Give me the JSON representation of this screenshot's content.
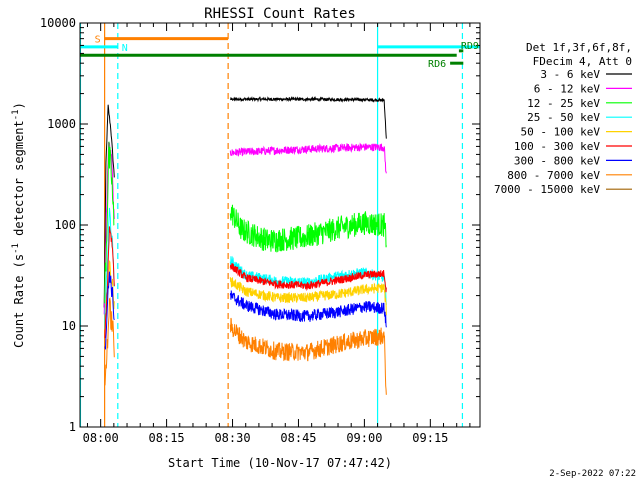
{
  "chart_data": {
    "type": "line",
    "title": "RHESSI Count Rates",
    "xlabel": "Start Time (10-Nov-17 07:47:42)",
    "ylabel_main": "Count Rate (s",
    "ylabel_sup": "-1",
    "ylabel_tail": " detector segment",
    "ylabel_sup2": "-1",
    "ylabel_close": ")",
    "timestamp": "2-Sep-2022 07:22",
    "log_scale_y": true,
    "xlim_minutes": [
      -4.7,
      86.3
    ],
    "ylim": [
      1,
      10000
    ],
    "x_ticks": [
      {
        "label": "08:00",
        "minute": 0
      },
      {
        "label": "08:15",
        "minute": 15
      },
      {
        "label": "08:30",
        "minute": 30
      },
      {
        "label": "08:45",
        "minute": 45
      },
      {
        "label": "09:00",
        "minute": 60
      },
      {
        "label": "09:15",
        "minute": 75
      }
    ],
    "y_ticks": [
      {
        "label": "1",
        "value": 1
      },
      {
        "label": "10",
        "value": 10
      },
      {
        "label": "100",
        "value": 100
      },
      {
        "label": "1000",
        "value": 1000
      },
      {
        "label": "10000",
        "value": 10000
      }
    ],
    "legend_header": [
      "Det 1f,3f,6f,8f,",
      "FDecim 4, Att 0"
    ],
    "legend_placement": "right",
    "series": [
      {
        "name": "3 - 6 keV",
        "color": "#000000",
        "seg1": [
          [
            0.8,
            15
          ],
          [
            1.2,
            400
          ],
          [
            1.7,
            1500
          ],
          [
            2.3,
            900
          ],
          [
            3.1,
            300
          ]
        ],
        "seg2": [
          [
            29.5,
            1760
          ],
          [
            45,
            1760
          ],
          [
            60,
            1740
          ],
          [
            64.5,
            1720
          ],
          [
            65.0,
            700
          ]
        ],
        "noise": 0.015
      },
      {
        "name": "6 - 12 keV",
        "color": "#ff00ff",
        "seg1": [
          [
            0.8,
            12
          ],
          [
            1.3,
            120
          ],
          [
            1.8,
            650
          ],
          [
            2.5,
            450
          ],
          [
            3.1,
            100
          ]
        ],
        "seg2": [
          [
            29.5,
            520
          ],
          [
            45,
            560
          ],
          [
            60,
            590
          ],
          [
            64.5,
            590
          ],
          [
            65.0,
            300
          ]
        ],
        "noise": 0.04
      },
      {
        "name": "12 - 25 keV",
        "color": "#00ff00",
        "seg1": [
          [
            0.9,
            20
          ],
          [
            1.4,
            90
          ],
          [
            1.8,
            500
          ],
          [
            2.5,
            300
          ],
          [
            3.1,
            80
          ]
        ],
        "seg2": [
          [
            29.5,
            140
          ],
          [
            32,
            90
          ],
          [
            38,
            70
          ],
          [
            46,
            75
          ],
          [
            55,
            95
          ],
          [
            60,
            105
          ],
          [
            64.5,
            100
          ],
          [
            65.0,
            70
          ]
        ],
        "noise": 0.12
      },
      {
        "name": "25 - 50 keV",
        "color": "#00ffff",
        "seg1": [
          [
            0.9,
            10
          ],
          [
            1.5,
            40
          ],
          [
            2.0,
            140
          ],
          [
            2.6,
            70
          ],
          [
            3.1,
            25
          ]
        ],
        "seg2": [
          [
            29.5,
            45
          ],
          [
            33,
            32
          ],
          [
            40,
            28
          ],
          [
            47,
            27
          ],
          [
            55,
            32
          ],
          [
            60,
            34
          ],
          [
            64.5,
            30
          ],
          [
            65.0,
            18
          ]
        ],
        "noise": 0.05
      },
      {
        "name": "50 - 100 keV",
        "color": "#ffd200",
        "seg1": [
          [
            1.0,
            10
          ],
          [
            1.5,
            20
          ],
          [
            2.0,
            40
          ],
          [
            2.7,
            25
          ],
          [
            3.1,
            15
          ]
        ],
        "seg2": [
          [
            29.5,
            28
          ],
          [
            33,
            22
          ],
          [
            40,
            19
          ],
          [
            47,
            19
          ],
          [
            55,
            21
          ],
          [
            60,
            23
          ],
          [
            64.5,
            24
          ],
          [
            65.0,
            14
          ]
        ],
        "noise": 0.05
      },
      {
        "name": "100 - 300 keV",
        "color": "#ff0000",
        "seg1": [
          [
            1.0,
            8
          ],
          [
            1.6,
            30
          ],
          [
            2.0,
            100
          ],
          [
            2.7,
            60
          ],
          [
            3.1,
            25
          ]
        ],
        "seg2": [
          [
            29.5,
            40
          ],
          [
            33,
            30
          ],
          [
            40,
            26
          ],
          [
            47,
            25
          ],
          [
            55,
            29
          ],
          [
            60,
            32
          ],
          [
            64.5,
            33
          ],
          [
            65.0,
            22
          ]
        ],
        "noise": 0.04
      },
      {
        "name": "300 - 800 keV",
        "color": "#0000ff",
        "seg1": [
          [
            1.0,
            6
          ],
          [
            1.6,
            18
          ],
          [
            2.0,
            35
          ],
          [
            2.7,
            20
          ],
          [
            3.1,
            12
          ]
        ],
        "seg2": [
          [
            29.5,
            20
          ],
          [
            33,
            16
          ],
          [
            40,
            13
          ],
          [
            47,
            12.5
          ],
          [
            55,
            14
          ],
          [
            60,
            15.5
          ],
          [
            64.5,
            15
          ],
          [
            65.0,
            10
          ]
        ],
        "noise": 0.06
      },
      {
        "name": "800 - 7000 keV",
        "color": "#ff8000",
        "seg1": [
          [
            1.0,
            2.5
          ],
          [
            1.6,
            8
          ],
          [
            2.0,
            15
          ],
          [
            2.7,
            10
          ],
          [
            3.1,
            6
          ]
        ],
        "seg2": [
          [
            29.5,
            10
          ],
          [
            33,
            7
          ],
          [
            40,
            5.6
          ],
          [
            47,
            5.5
          ],
          [
            55,
            6.8
          ],
          [
            60,
            7.5
          ],
          [
            64.5,
            8
          ],
          [
            65.0,
            2
          ]
        ],
        "noise": 0.09
      },
      {
        "name": "7000 - 15000 keV",
        "color": "#a06000"
      }
    ],
    "flags": [
      {
        "label": "S",
        "color": "#ff8000",
        "x_start": 0.9,
        "x_end": 29.0,
        "level": 7000,
        "label_side": "left"
      },
      {
        "label": "N",
        "color": "#00ffff",
        "x_start": -4.7,
        "x_end": 3.9,
        "level": 5800,
        "label_side": "right"
      },
      {
        "label": "N",
        "color": "#00ffff",
        "x_start": 63.0,
        "x_end": 86.3,
        "level": 5800,
        "label_side": "none"
      },
      {
        "label": "",
        "color": "#008000",
        "x_start": -4.7,
        "x_end": 81.0,
        "level": 4800,
        "label_side": "none"
      },
      {
        "label": "RD6",
        "color": "#008000",
        "x_start": 79.5,
        "x_end": 82.5,
        "level": 4000,
        "label_side": "left"
      },
      {
        "label": "RD9",
        "color": "#008000",
        "x_start": 81.5,
        "x_end": 82.5,
        "level": 5300,
        "label_side": "above-right"
      }
    ],
    "vlines": [
      {
        "minute": -4.6,
        "color": "#00ffff",
        "style": "solid"
      },
      {
        "minute": 0.9,
        "color": "#ff8000",
        "style": "solid"
      },
      {
        "minute": 3.9,
        "color": "#00ffff",
        "style": "dashed"
      },
      {
        "minute": 29.0,
        "color": "#ff8000",
        "style": "dashed"
      },
      {
        "minute": 63.0,
        "color": "#00ffff",
        "style": "solid"
      },
      {
        "minute": 82.3,
        "color": "#00ffff",
        "style": "dashed"
      }
    ]
  }
}
